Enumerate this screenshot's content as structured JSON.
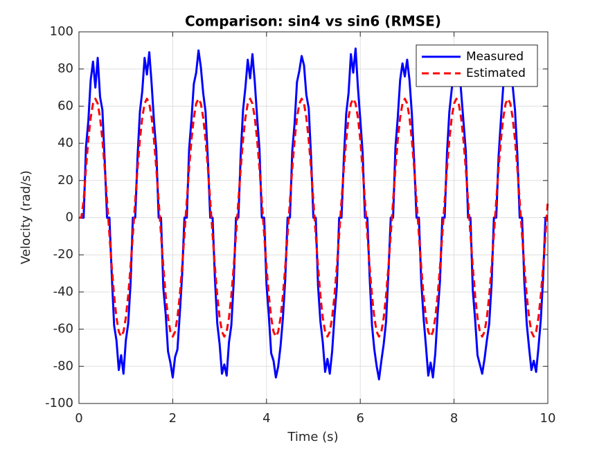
{
  "chart_data": {
    "type": "line",
    "title": "Comparison: sin4 vs sin6 (RMSE)",
    "xlabel": "Time (s)",
    "ylabel": "Velocity (rad/s)",
    "x": [
      0,
      0.05,
      0.1,
      0.15,
      0.2,
      0.25,
      0.3,
      0.35,
      0.4,
      0.45,
      0.5,
      0.55,
      0.6,
      0.65,
      0.7,
      0.75,
      0.8,
      0.85,
      0.9,
      0.95,
      1,
      1.05,
      1.1,
      1.15,
      1.2,
      1.25,
      1.3,
      1.35,
      1.4,
      1.45,
      1.5,
      1.55,
      1.6,
      1.65,
      1.7,
      1.75,
      1.8,
      1.85,
      1.9,
      1.95,
      2,
      2.05,
      2.1,
      2.15,
      2.2,
      2.25,
      2.3,
      2.35,
      2.4,
      2.45,
      2.5,
      2.55,
      2.6,
      2.65,
      2.7,
      2.75,
      2.8,
      2.85,
      2.9,
      2.95,
      3,
      3.05,
      3.1,
      3.15,
      3.2,
      3.25,
      3.3,
      3.35,
      3.4,
      3.45,
      3.5,
      3.55,
      3.6,
      3.65,
      3.7,
      3.75,
      3.8,
      3.85,
      3.9,
      3.95,
      4,
      4.05,
      4.1,
      4.15,
      4.2,
      4.25,
      4.3,
      4.35,
      4.4,
      4.45,
      4.5,
      4.55,
      4.6,
      4.65,
      4.7,
      4.75,
      4.8,
      4.85,
      4.9,
      4.95,
      5,
      5.05,
      5.1,
      5.15,
      5.2,
      5.25,
      5.3,
      5.35,
      5.4,
      5.45,
      5.5,
      5.55,
      5.6,
      5.65,
      5.7,
      5.75,
      5.8,
      5.85,
      5.9,
      5.95,
      6,
      6.05,
      6.1,
      6.15,
      6.2,
      6.25,
      6.3,
      6.35,
      6.4,
      6.45,
      6.5,
      6.55,
      6.6,
      6.65,
      6.7,
      6.75,
      6.8,
      6.85,
      6.9,
      6.95,
      7,
      7.05,
      7.1,
      7.15,
      7.2,
      7.25,
      7.3,
      7.35,
      7.4,
      7.45,
      7.5,
      7.55,
      7.6,
      7.65,
      7.7,
      7.75,
      7.8,
      7.85,
      7.9,
      7.95,
      8,
      8.05,
      8.1,
      8.15,
      8.2,
      8.25,
      8.3,
      8.35,
      8.4,
      8.45,
      8.5,
      8.55,
      8.6,
      8.65,
      8.7,
      8.75,
      8.8,
      8.85,
      8.9,
      8.95,
      9,
      9.05,
      9.1,
      9.15,
      9.2,
      9.25,
      9.3,
      9.35,
      9.4,
      9.45,
      9.5,
      9.55,
      9.6,
      9.65,
      9.7,
      9.75,
      9.8,
      9.85,
      9.9,
      9.95,
      10
    ],
    "series": [
      {
        "name": "Measured",
        "color": "#0000ff",
        "dash": "solid",
        "values": [
          0,
          0,
          0,
          38,
          52,
          74,
          84,
          70,
          86,
          65,
          58,
          30,
          0,
          0,
          -31,
          -58,
          -66,
          -82,
          -74,
          -84,
          -66,
          -57,
          -36,
          0,
          0,
          33,
          57,
          68,
          86,
          77,
          89,
          72,
          52,
          36,
          0,
          0,
          -38,
          -52,
          -72,
          -78,
          -86,
          -75,
          -71,
          -52,
          -31,
          0,
          0,
          37,
          53,
          72,
          78,
          90,
          81,
          67,
          57,
          31,
          0,
          0,
          -33,
          -57,
          -68,
          -84,
          -79,
          -85,
          -67,
          -58,
          -35,
          0,
          0,
          34,
          58,
          70,
          85,
          75,
          88,
          73,
          54,
          37,
          0,
          0,
          -36,
          -53,
          -73,
          -77,
          -86,
          -80,
          -69,
          -54,
          -33,
          0,
          0,
          36,
          51,
          73,
          79,
          87,
          82,
          66,
          59,
          33,
          0,
          0,
          -37,
          -56,
          -67,
          -83,
          -76,
          -84,
          -72,
          -53,
          -37,
          0,
          0,
          32,
          56,
          67,
          88,
          78,
          91,
          70,
          53,
          35,
          0,
          0,
          -32,
          -58,
          -71,
          -80,
          -87,
          -77,
          -68,
          -56,
          -30,
          0,
          0,
          38,
          54,
          74,
          83,
          76,
          85,
          74,
          56,
          30,
          0,
          0,
          -34,
          -54,
          -69,
          -85,
          -78,
          -86,
          -73,
          -52,
          -34,
          0,
          0,
          35,
          57,
          69,
          80,
          89,
          84,
          68,
          52,
          36,
          0,
          0,
          -39,
          -55,
          -74,
          -79,
          -84,
          -76,
          -66,
          -57,
          -36,
          0,
          0,
          33,
          53,
          71,
          86,
          77,
          85,
          71,
          58,
          34,
          0,
          0,
          -35,
          -57,
          -70,
          -82,
          -77,
          -83,
          -70,
          -55,
          -32,
          0,
          0
        ]
      },
      {
        "name": "Estimated",
        "color": "#ff0000",
        "dash": "dashed",
        "values": [
          0,
          0,
          9.1,
          26.6,
          42.0,
          53.8,
          61.4,
          64.0,
          61.4,
          53.8,
          41.9,
          26.5,
          9.0,
          -9.1,
          -26.6,
          -42.0,
          -53.8,
          -61.4,
          -64.0,
          -61.4,
          -53.8,
          -41.9,
          -26.5,
          -9.0,
          9.1,
          26.6,
          42.0,
          53.8,
          61.4,
          64.0,
          61.4,
          53.8,
          41.9,
          26.5,
          9.0,
          -9.1,
          -26.6,
          -42.0,
          -53.8,
          -61.4,
          -64.0,
          -61.4,
          -53.8,
          -41.9,
          -26.5,
          -9.0,
          9.1,
          26.6,
          42.0,
          53.8,
          61.4,
          64.0,
          61.4,
          53.8,
          41.9,
          26.5,
          9.0,
          -9.1,
          -26.6,
          -42.0,
          -53.8,
          -61.4,
          -64.0,
          -61.4,
          -53.8,
          -41.9,
          -26.5,
          -9.0,
          9.1,
          26.6,
          42.0,
          53.8,
          61.4,
          64.0,
          61.4,
          53.8,
          41.9,
          26.5,
          9.0,
          -9.1,
          -26.6,
          -42.0,
          -53.8,
          -61.4,
          -64.0,
          -61.4,
          -53.8,
          -41.9,
          -26.5,
          -9.0,
          9.1,
          26.6,
          42.0,
          53.8,
          61.4,
          64.0,
          61.4,
          53.8,
          41.9,
          26.5,
          9.0,
          -9.1,
          -26.6,
          -42.0,
          -53.8,
          -61.4,
          -64.0,
          -61.4,
          -53.8,
          -41.9,
          -26.5,
          -9.0,
          9.1,
          26.6,
          42.0,
          53.8,
          61.4,
          64.0,
          61.4,
          53.8,
          41.9,
          26.5,
          9.0,
          -9.1,
          -26.6,
          -42.0,
          -53.8,
          -61.4,
          -64.0,
          -61.4,
          -53.8,
          -41.9,
          -26.5,
          -9.0,
          9.1,
          26.6,
          42.0,
          53.8,
          61.4,
          64.0,
          61.4,
          53.8,
          41.9,
          26.5,
          9.0,
          -9.1,
          -26.6,
          -42.0,
          -53.8,
          -61.4,
          -64.0,
          -61.4,
          -53.8,
          -41.9,
          -26.5,
          -9.0,
          9.1,
          26.6,
          42.0,
          53.8,
          61.4,
          64.0,
          61.4,
          53.8,
          41.9,
          26.5,
          9.0,
          -9.1,
          -26.6,
          -42.0,
          -53.8,
          -61.4,
          -64.0,
          -61.4,
          -53.8,
          -41.9,
          -26.5,
          -9.0,
          9.1,
          26.6,
          42.0,
          53.8,
          61.4,
          64.0,
          61.4,
          53.8,
          41.9,
          26.5,
          9.0,
          -9.1,
          -26.6,
          -42.0,
          -53.8,
          -61.4,
          -64.0,
          -61.4,
          -53.8,
          -41.9,
          -26.5,
          -9.0,
          9.1
        ]
      }
    ],
    "xlim": [
      0,
      10
    ],
    "xticks": [
      0,
      2,
      4,
      6,
      8,
      10
    ],
    "ylim": [
      -100,
      100
    ],
    "yticks": [
      -100,
      -80,
      -60,
      -40,
      -20,
      0,
      20,
      40,
      60,
      80,
      100
    ],
    "grid": true,
    "legend": "northeast"
  }
}
